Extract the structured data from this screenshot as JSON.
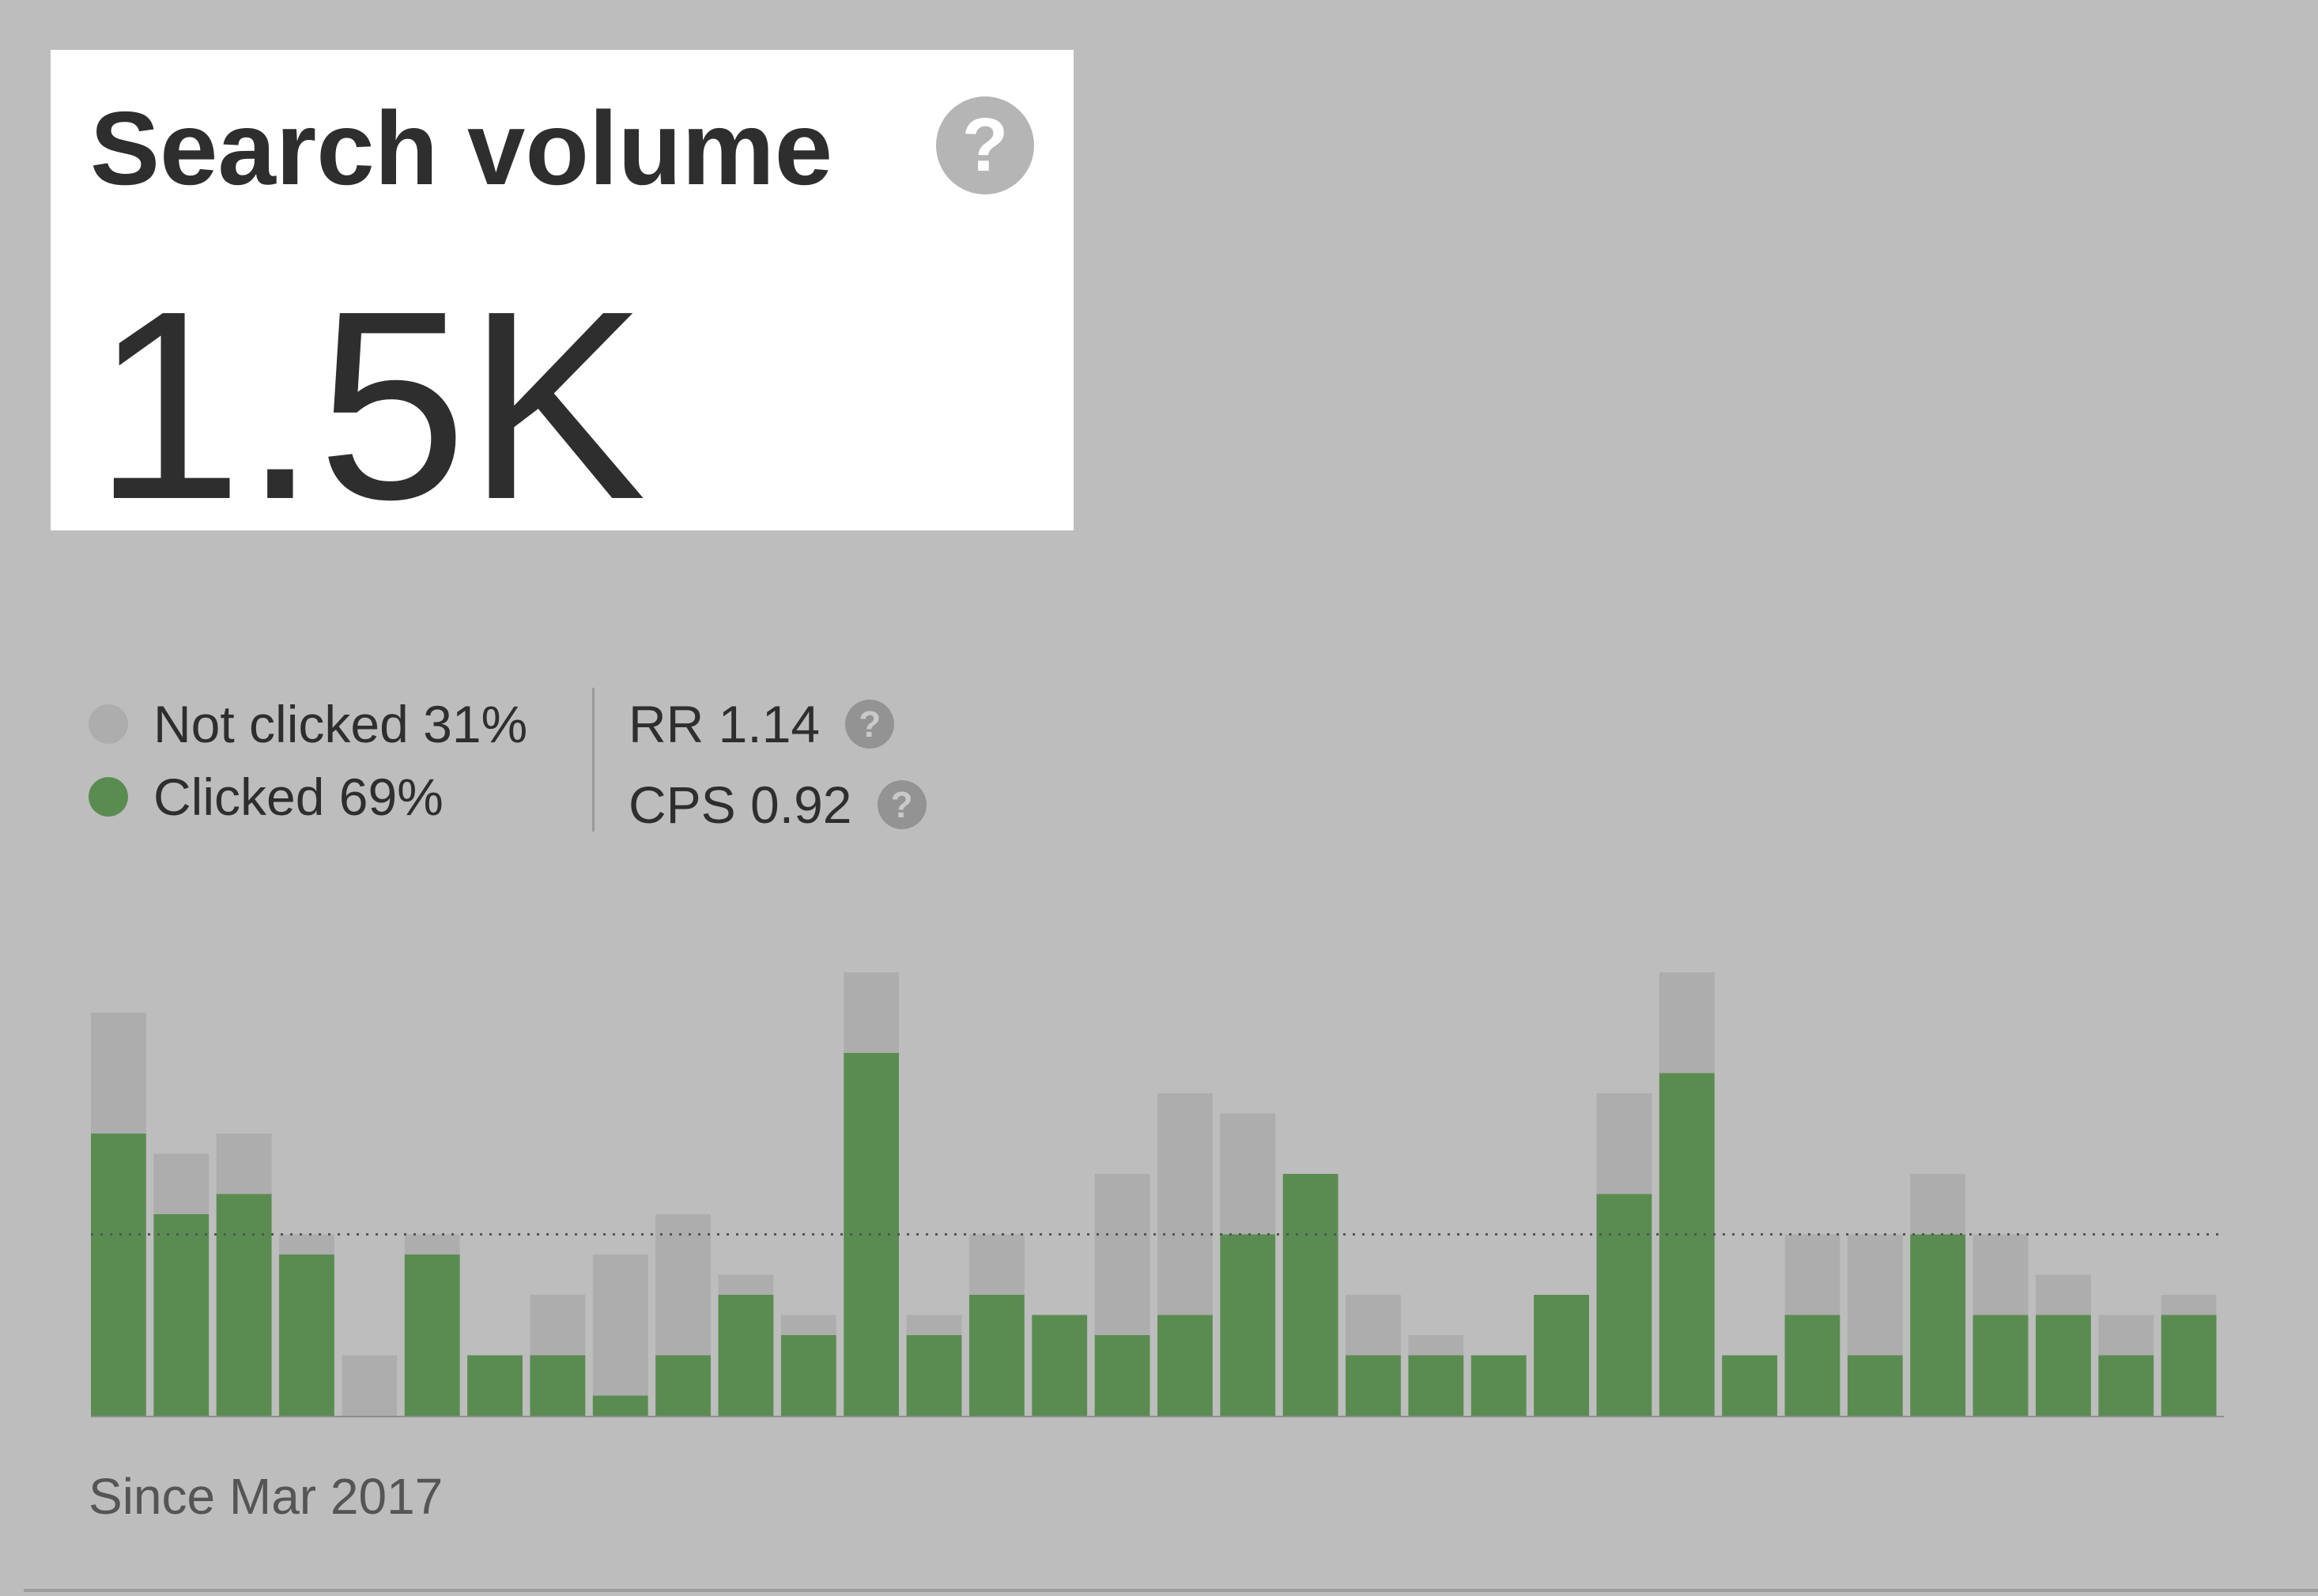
{
  "header": {
    "title": "Search volume",
    "help_icon": "question-icon",
    "value": "1.5K"
  },
  "legend": {
    "not_clicked": "Not clicked 31%",
    "clicked": "Clicked 69%"
  },
  "metrics": {
    "rr": "RR 1.14",
    "cps": "CPS 0.92"
  },
  "footer": {
    "since": "Since Mar 2017"
  },
  "colors": {
    "clicked": "#5a8c51",
    "not_clicked": "#adadad",
    "background": "#bdbdbd"
  },
  "chart_data": {
    "type": "bar",
    "stacked": true,
    "grid": false,
    "average_line": true,
    "average_value": 9,
    "ylim": [
      0,
      22
    ],
    "series": [
      {
        "name": "Clicked 69%",
        "values": [
          14,
          10,
          11,
          8,
          0,
          8,
          3,
          3,
          1,
          3,
          6,
          4,
          18,
          4,
          6,
          5,
          4,
          5,
          9,
          12,
          3,
          3,
          3,
          6,
          11,
          17,
          3,
          5,
          3,
          9,
          5,
          5,
          3,
          5
        ]
      },
      {
        "name": "Not clicked 31%",
        "values": [
          6,
          3,
          3,
          1,
          3,
          1,
          0,
          3,
          7,
          7,
          1,
          1,
          4,
          1,
          3,
          0,
          8,
          11,
          6,
          0,
          3,
          1,
          0,
          0,
          5,
          5,
          0,
          4,
          6,
          3,
          4,
          2,
          2,
          1
        ]
      }
    ]
  }
}
